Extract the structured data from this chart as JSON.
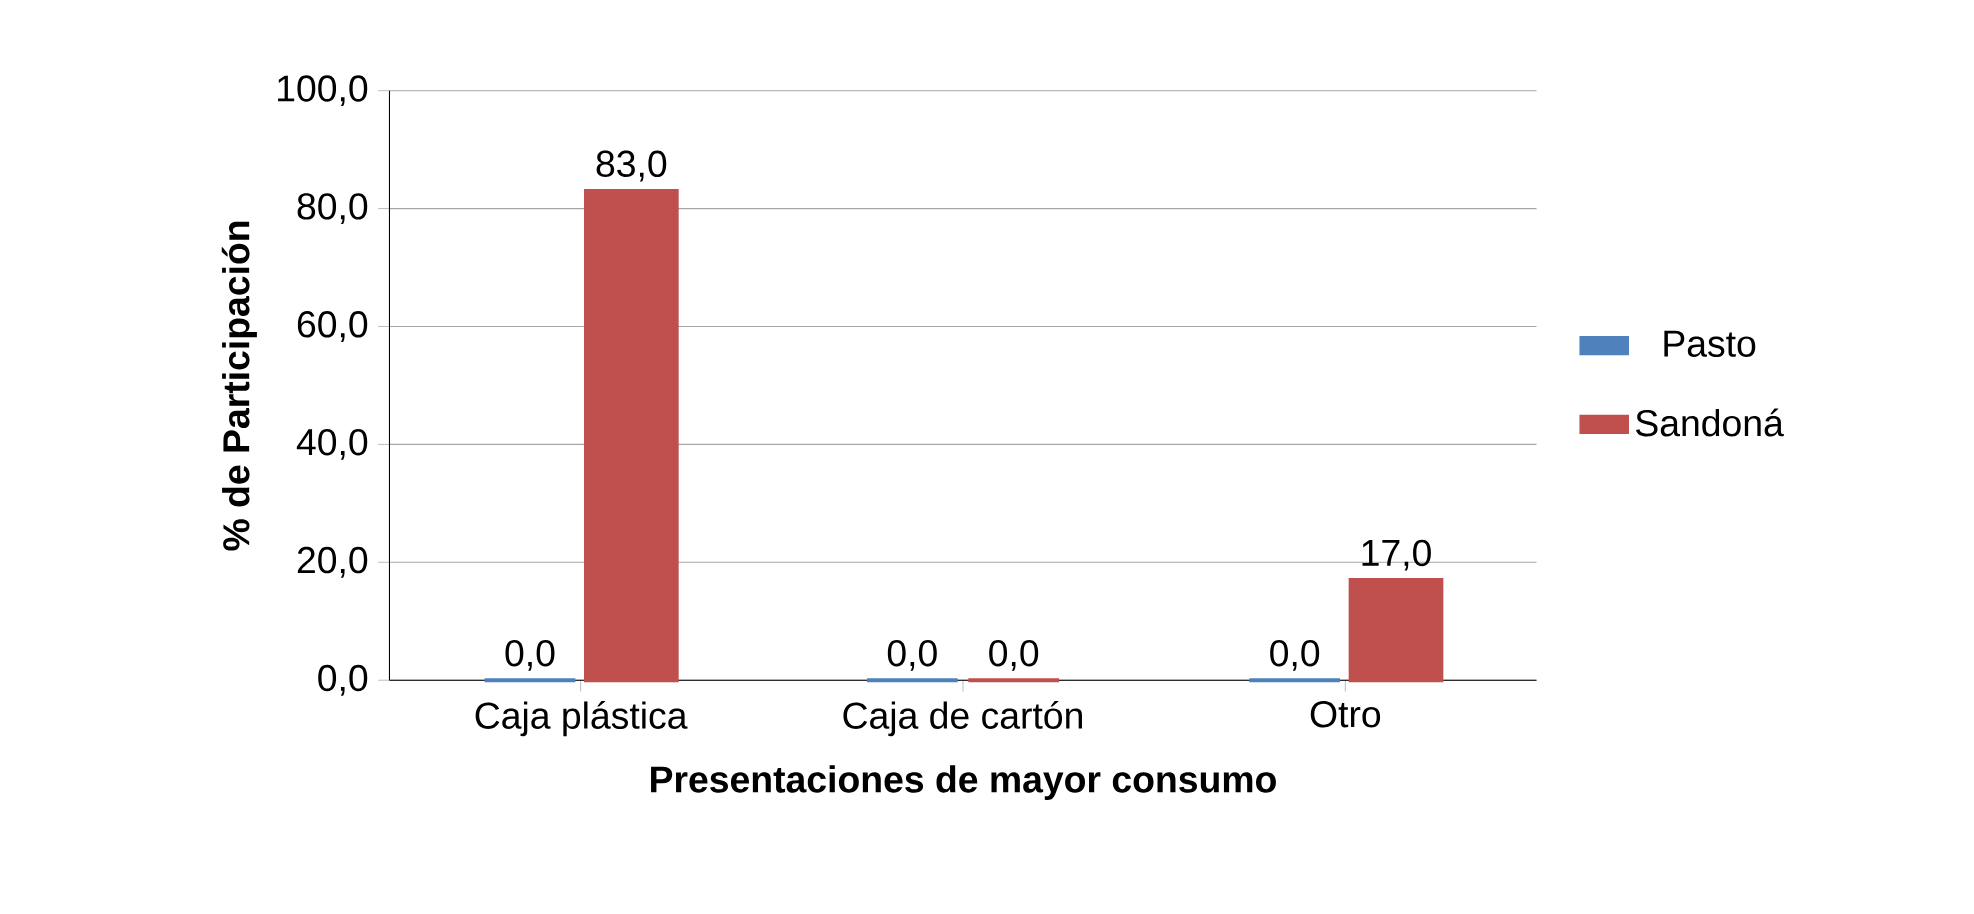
{
  "chart_data": {
    "type": "bar",
    "xlabel": "Presentaciones de mayor consumo",
    "ylabel": "% de Participación",
    "categories": [
      "Caja plástica",
      "Caja de cartón",
      "Otro"
    ],
    "series": [
      {
        "name": "Pasto",
        "color": "#4f81bd",
        "values": [
          0,
          0,
          0
        ],
        "value_labels": [
          "0,0",
          "0,0",
          "0,0"
        ]
      },
      {
        "name": "Sandoná",
        "color": "#c0504d",
        "values": [
          83,
          0,
          17
        ],
        "value_labels": [
          "83,0",
          "0,0",
          "17,0"
        ]
      }
    ],
    "ylim": [
      0,
      100
    ],
    "yticks": [
      {
        "value": 0,
        "label": "0,0"
      },
      {
        "value": 20,
        "label": "20,0"
      },
      {
        "value": 40,
        "label": "40,0"
      },
      {
        "value": 60,
        "label": "60,0"
      },
      {
        "value": 80,
        "label": "80,0"
      },
      {
        "value": 100,
        "label": "100,0"
      }
    ],
    "grid": "y",
    "legend": "right"
  }
}
